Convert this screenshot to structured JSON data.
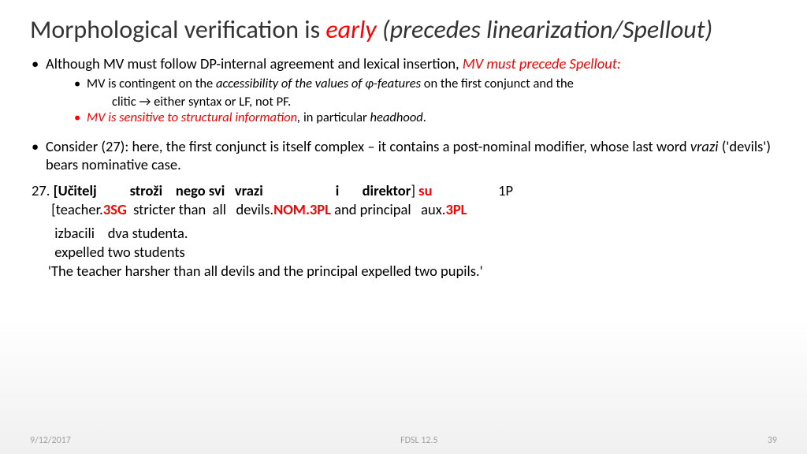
{
  "title": {
    "part1": "Morphological verification is ",
    "early": "early",
    "part2": " (precedes linearization/Spellout)"
  },
  "bullets": {
    "b1a_pre": "Although MV must follow DP-internal agreement and lexical insertion, ",
    "b1a_red": "MV must precede Spellout:",
    "b2a_pre": "MV is contingent on the ",
    "b2a_ital": "accessibility of the values of φ-features ",
    "b2a_post": "on the first conjunct and the",
    "b2a_l2_pre": "clitic ",
    "b2a_l2_arrow": "→",
    "b2a_l2_post": " either syntax or LF, not PF.",
    "b2b_red": "MV is sensitive to structural information",
    "b2b_comma": ", ",
    "b2b_mid": "in particular ",
    "b2b_ital": "headhood",
    "b2b_dot": ".",
    "b1b_pre": "Consider (27): here, the first conjunct is itself complex – it contains a post-nominal modifier, whose last word ",
    "b1b_ital": "vrazi ",
    "b1b_post": "('devils') bears nominative case."
  },
  "example": {
    "num": "27. ",
    "l1_a": "[Učitelj          stroži    nego svi   vrazi                      i       direktor",
    "l1_b": "]",
    "l1_su": " su",
    "l1_c": "                    1P",
    "l2_a": "[teacher.",
    "l2_3sg": "3SG",
    "l2_b": "  stricter than  all   devils.",
    "l2_nom": "NOM.3PL",
    "l2_c": " and principal   aux.",
    "l2_3pl": "3PL",
    "l3": " izbacili    dva studenta.",
    "l4": "expelled two students",
    "l5": "'The teacher harsher than all devils and the principal expelled two pupils.'"
  },
  "footer": {
    "date": "9/12/2017",
    "center": "FDSL 12.5",
    "page": "39"
  },
  "colors": {
    "red": "#ff0000",
    "text": "#000000",
    "footer": "#a0a0a0"
  }
}
